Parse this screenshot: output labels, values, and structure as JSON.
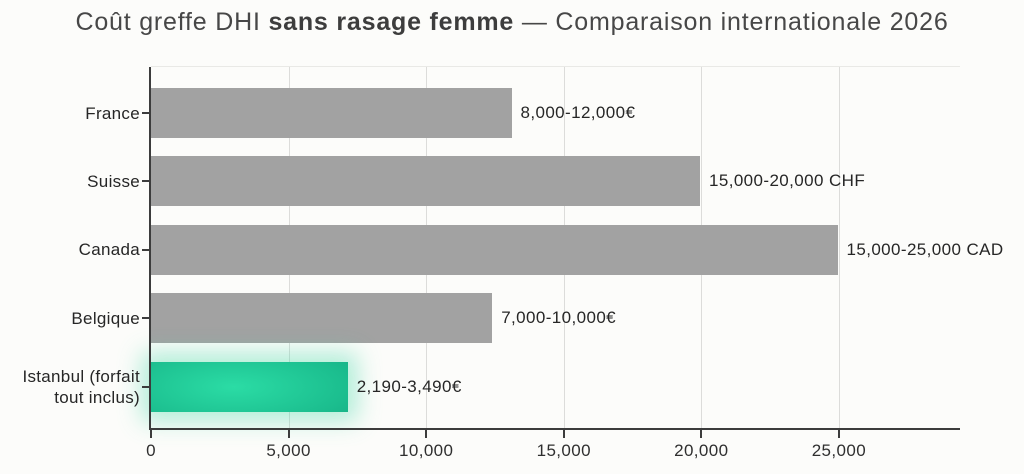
{
  "title": {
    "prefix": "Coût greffe DHI ",
    "bold": "sans rasage femme",
    "suffix": " — Comparaison internationale 2026"
  },
  "chart_data": {
    "type": "bar",
    "orientation": "horizontal",
    "title": "Coût greffe DHI sans rasage femme — Comparaison internationale 2026",
    "categories": [
      "France",
      "Suisse",
      "Canada",
      "Belgique",
      "Istanbul (forfait tout inclus)"
    ],
    "rows": [
      {
        "key": "france",
        "category": "France",
        "value_label": "8,000-12,000€",
        "range_min": 8000,
        "range_max": 12000,
        "currency": "EUR",
        "bar_length_axis_units": 13100,
        "highlight": false
      },
      {
        "key": "suisse",
        "category": "Suisse",
        "value_label": "15,000-20,000 CHF",
        "range_min": 15000,
        "range_max": 20000,
        "currency": "CHF",
        "bar_length_axis_units": 19950,
        "highlight": false
      },
      {
        "key": "canada",
        "category": "Canada",
        "value_label": "15,000-25,000 CAD",
        "range_min": 15000,
        "range_max": 25000,
        "currency": "CAD",
        "bar_length_axis_units": 24950,
        "highlight": false
      },
      {
        "key": "belgique",
        "category": "Belgique",
        "value_label": "7,000-10,000€",
        "range_min": 7000,
        "range_max": 10000,
        "currency": "EUR",
        "bar_length_axis_units": 12400,
        "highlight": false
      },
      {
        "key": "istanbul",
        "category": "Istanbul (forfait tout inclus)",
        "value_label": "2,190-3,490€",
        "range_min": 2190,
        "range_max": 3490,
        "currency": "EUR",
        "bar_length_axis_units": 7150,
        "highlight": true
      }
    ],
    "x_axis": {
      "tick_values": [
        0,
        5000,
        10000,
        15000,
        20000,
        25000
      ],
      "tick_labels": [
        "0",
        "5,000",
        "10,000",
        "15,000",
        "20,000",
        "25,000"
      ],
      "xlim": [
        0,
        29400
      ]
    },
    "grid": "vertical",
    "legend": "none",
    "colors": {
      "bar": "#a2a2a2",
      "highlight_center": "#2bdca5",
      "highlight_edge": "#0e8b70",
      "glow": "rgba(70,216,168,0.42)",
      "grid": "#dcdcda",
      "axis": "#3c3c3c",
      "text": "#262626",
      "title": "#474747",
      "background": "#fbfbf9"
    }
  }
}
